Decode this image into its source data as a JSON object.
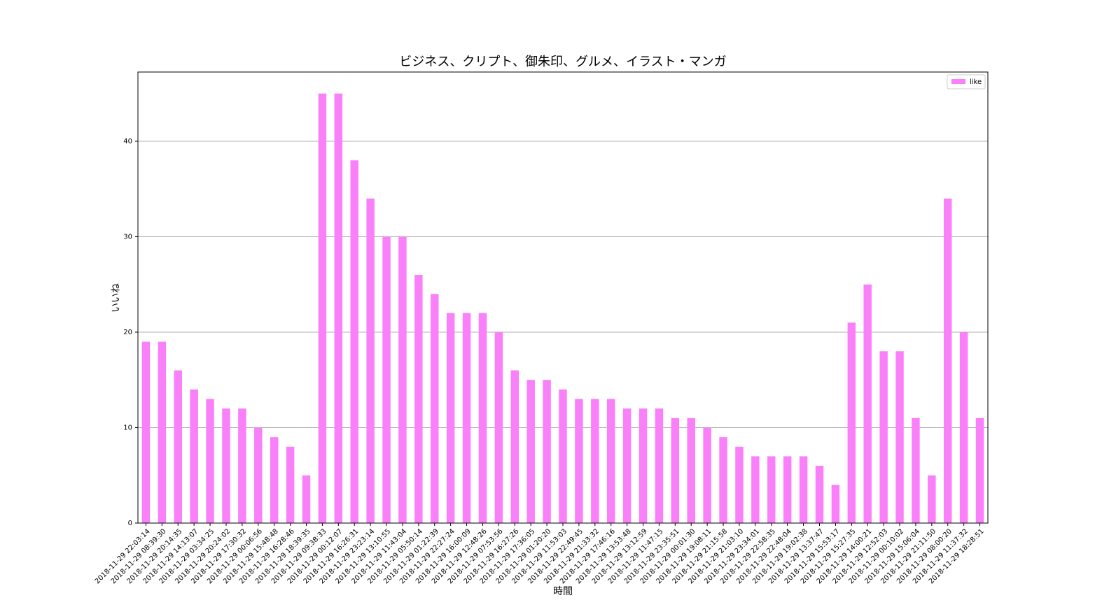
{
  "chart_data": {
    "type": "bar",
    "title": "ビジネス、クリプト、御朱印、グルメ、イラスト・マンガ",
    "x_label": "時間",
    "y_label": "いいね",
    "categories": [
      "2018-11-29 22:03:14",
      "2018-11-29 08:39:30",
      "2018-11-29 20:14:35",
      "2018-11-29 14:13:07",
      "2018-11-29 03:34:25",
      "2018-11-29 20:24:02",
      "2018-11-29 17:30:32",
      "2018-11-29 00:06:56",
      "2018-11-29 15:48:48",
      "2018-11-29 16:28:46",
      "2018-11-29 18:39:35",
      "2018-11-29 09:38:33",
      "2018-11-29 00:12:07",
      "2018-11-29 16:26:31",
      "2018-11-29 23:23:14",
      "2018-11-29 13:10:55",
      "2018-11-29 11:43:04",
      "2018-11-29 05:50:14",
      "2018-11-29 01:22:39",
      "2018-11-29 22:27:24",
      "2018-11-29 16:00:09",
      "2018-11-29 12:48:26",
      "2018-11-29 07:53:56",
      "2018-11-29 16:27:26",
      "2018-11-29 17:36:05",
      "2018-11-29 01:20:20",
      "2018-11-29 11:53:03",
      "2018-11-29 22:49:45",
      "2018-11-29 21:33:32",
      "2018-11-29 17:46:16",
      "2018-11-29 13:53:48",
      "2018-11-29 13:12:59",
      "2018-11-29 11:47:15",
      "2018-11-29 23:35:51",
      "2018-11-29 00:01:30",
      "2018-11-29 19:08:11",
      "2018-11-29 21:15:58",
      "2018-11-29 21:03:10",
      "2018-11-29 23:34:01",
      "2018-11-29 22:58:35",
      "2018-11-29 22:48:04",
      "2018-11-29 19:02:38",
      "2018-11-29 13:37:47",
      "2018-11-29 15:53:17",
      "2018-11-29 15:27:35",
      "2018-11-29 14:00:21",
      "2018-11-29 12:52:03",
      "2018-11-29 00:10:02",
      "2018-11-29 15:06:04",
      "2018-11-29 21:11:50",
      "2018-11-29 08:00:20",
      "2018-11-29 11:37:32",
      "2018-11-29 18:28:51"
    ],
    "series": [
      {
        "name": "like",
        "color": "#fa80fa",
        "values": [
          19,
          19,
          16,
          14,
          13,
          12,
          12,
          10,
          9,
          8,
          5,
          45,
          45,
          38,
          34,
          30,
          30,
          26,
          24,
          22,
          22,
          22,
          20,
          16,
          15,
          15,
          14,
          13,
          13,
          13,
          12,
          12,
          12,
          11,
          11,
          10,
          9,
          8,
          7,
          7,
          7,
          7,
          6,
          4,
          21,
          25,
          18,
          18,
          11,
          5,
          34,
          20,
          11
        ]
      }
    ],
    "ylim": [
      0,
      47.25
    ],
    "yticks": [
      0,
      10,
      20,
      30,
      40
    ],
    "grid": true,
    "legend": "upper right"
  }
}
